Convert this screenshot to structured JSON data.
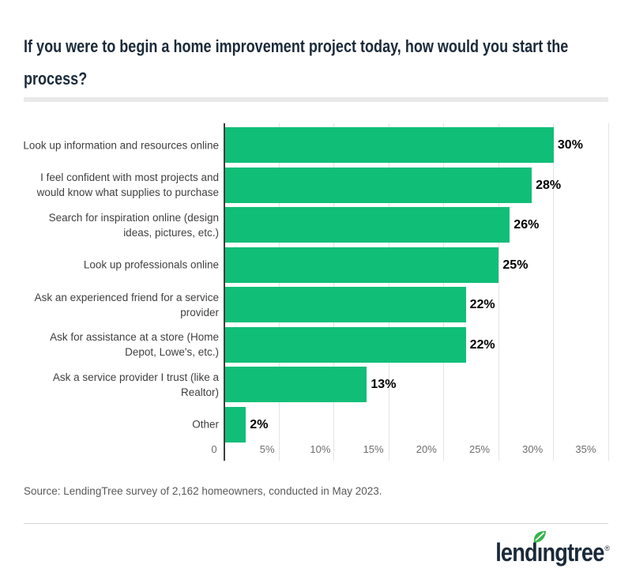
{
  "header": {
    "title_line1": "If you were to begin a home improvement project today, how would you start the",
    "title_line2": "process?"
  },
  "chart_data": {
    "type": "bar",
    "orientation": "horizontal",
    "title": "If you were to begin a home improvement project today, how would you start the process?",
    "categories": [
      "Look up information and resources online",
      "I feel confident with most projects and would know what supplies to purchase",
      "Search for inspiration online (design ideas, pictures, etc.)",
      "Look up professionals online",
      "Ask an experienced friend for a service provider",
      "Ask for assistance at a store (Home Depot, Lowe's, etc.)",
      "Ask a service provider I trust (like a Realtor)",
      "Other"
    ],
    "values": [
      30,
      28,
      26,
      25,
      22,
      22,
      13,
      2
    ],
    "value_labels": [
      "30%",
      "28%",
      "26%",
      "25%",
      "22%",
      "22%",
      "13%",
      "2%"
    ],
    "x_tick_labels": [
      "0",
      "5%",
      "10%",
      "15%",
      "20%",
      "25%",
      "30%",
      "35%"
    ],
    "xlim": [
      0,
      35
    ],
    "xlabel": "",
    "ylabel": "",
    "grid": "vertical-only",
    "legend": "none",
    "bar_color": "#10be78",
    "value_label_color": "#000000",
    "axis_line_color": "#3d3d3d"
  },
  "source": {
    "text": "Source: LendingTree survey of 2,162 homeowners, conducted in May 2023."
  },
  "footer": {
    "logo": {
      "brand": "lendingtree",
      "part1": "lend",
      "i_glyph": "ı",
      "part2": "ngtree",
      "registered": "®",
      "leaf_color": "#35b44a"
    }
  },
  "colors": {
    "accent_green": "#10be78",
    "navy": "#1b2a3a"
  }
}
